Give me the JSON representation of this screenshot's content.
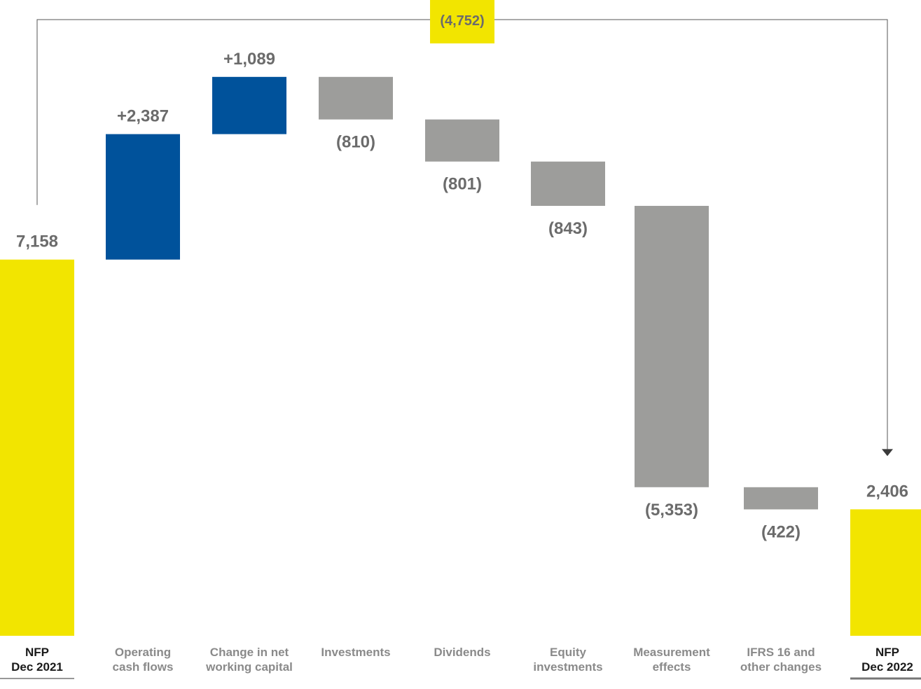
{
  "chart_data": {
    "type": "waterfall",
    "categories": [
      [
        "NFP",
        "Dec 2021"
      ],
      [
        "Operating",
        "cash flows"
      ],
      [
        "Change in net",
        "working capital"
      ],
      [
        "Investments"
      ],
      [
        "Dividends"
      ],
      [
        "Equity",
        "investments"
      ],
      [
        "Measurement",
        "effects"
      ],
      [
        "IFRS 16 and",
        "other changes"
      ],
      [
        "NFP",
        "Dec 2022"
      ]
    ],
    "values": [
      7158,
      2387,
      1089,
      -810,
      -801,
      -843,
      -5353,
      -422,
      2406
    ],
    "kinds": [
      "total",
      "increase",
      "increase",
      "decrease",
      "decrease",
      "decrease",
      "decrease",
      "decrease",
      "total"
    ],
    "labels": [
      "7,158",
      "+2,387",
      "+1,089",
      "(810)",
      "(801)",
      "(843)",
      "(5,353)",
      "(422)",
      "2,406"
    ],
    "bridge": {
      "from": "NFP Dec 2021",
      "to": "NFP Dec 2022",
      "value": -4752,
      "label": "(4,752)"
    },
    "title": "",
    "xlabel": "",
    "ylabel": ""
  },
  "colors": {
    "total": "#f2e500",
    "increase": "#00529b",
    "decrease": "#9d9d9b",
    "value_text": "#6b6b6b",
    "total_category_text": "#1a1a1a",
    "category_text": "#8a8a8a",
    "bridge_line": "#555555",
    "bridge_label_bg": "#f2e500"
  }
}
